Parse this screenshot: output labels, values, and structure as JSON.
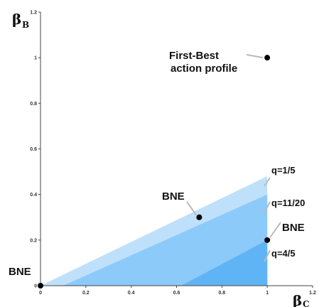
{
  "chart_data": {
    "type": "area",
    "xlabel": "β",
    "xlabel_sub": "C",
    "ylabel": "β",
    "ylabel_sub": "B",
    "xlim": [
      0,
      1.2
    ],
    "ylim": [
      0,
      1.2
    ],
    "x_ticks": [
      "0",
      "0.2",
      "0.4",
      "0.6",
      "0.8",
      "1",
      "1.2"
    ],
    "y_ticks": [
      "0",
      "0.2",
      "0.4",
      "0.6",
      "0.8",
      "1",
      "1.2"
    ],
    "grid": false,
    "regions": [
      {
        "name": "q=1/5",
        "polygon": [
          [
            0,
            0
          ],
          [
            1,
            0.48
          ],
          [
            1,
            0
          ]
        ],
        "color": "#bfe0fb"
      },
      {
        "name": "q=11/20",
        "polygon": [
          [
            0.1,
            0
          ],
          [
            1,
            0.4
          ],
          [
            1,
            0
          ]
        ],
        "color": "#8ccafa"
      },
      {
        "name": "q=4/5",
        "polygon": [
          [
            0.62,
            0
          ],
          [
            1,
            0.2
          ],
          [
            1,
            0
          ]
        ],
        "color": "#5fb4f5"
      }
    ],
    "points": [
      {
        "label": "First-Best action profile",
        "x": 1,
        "y": 1
      },
      {
        "label": "BNE",
        "x": 0.7,
        "y": 0.3
      },
      {
        "label": "BNE",
        "x": 1,
        "y": 0.2
      },
      {
        "label": "BNE",
        "x": 0,
        "y": 0
      }
    ],
    "annotations": {
      "first_best_line1": "First-Best",
      "first_best_line2": "action profile",
      "bne_mid": "BNE",
      "bne_right": "BNE",
      "bne_origin": "BNE",
      "q1": "q=1/5",
      "q2": "q=11/20",
      "q3": "q=4/5"
    }
  }
}
